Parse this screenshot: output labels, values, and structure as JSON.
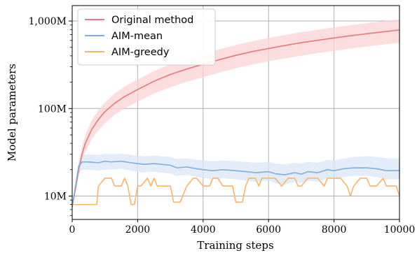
{
  "chart_data": {
    "type": "line",
    "title": "",
    "xlabel": "Training steps",
    "ylabel": "Model parameters",
    "xlim": [
      0,
      10000
    ],
    "ylim_millions": [
      5.4,
      1500
    ],
    "yscale": "log",
    "grid": true,
    "legend_position": "top-left",
    "x_ticks": [
      0,
      2000,
      4000,
      6000,
      8000,
      10000
    ],
    "x_tick_labels": [
      "0",
      "2000",
      "4000",
      "6000",
      "8000",
      "10000"
    ],
    "y_ticks_millions": [
      10,
      100,
      1000
    ],
    "y_tick_labels": [
      "10M",
      "100M",
      "1,000M"
    ],
    "series": [
      {
        "name": "Original method",
        "color": "#e8787a",
        "band_color": "#fbd3d4",
        "x": [
          0,
          100,
          200,
          300,
          400,
          600,
          800,
          1000,
          1300,
          1600,
          2000,
          2500,
          3000,
          3500,
          4000,
          4500,
          5000,
          5500,
          6000,
          6500,
          7000,
          7500,
          8000,
          8500,
          9000,
          9500,
          10000
        ],
        "y": [
          7.5,
          12,
          20,
          30,
          40,
          58,
          75,
          92,
          115,
          137,
          165,
          205,
          245,
          283,
          320,
          362,
          405,
          447,
          485,
          525,
          565,
          602,
          640,
          678,
          715,
          752,
          790
        ],
        "lower": [
          7.5,
          11,
          17,
          25,
          32,
          45,
          56,
          68,
          85,
          100,
          120,
          148,
          175,
          202,
          228,
          258,
          288,
          318,
          346,
          374,
          402,
          430,
          456,
          484,
          511,
          538,
          565
        ],
        "upper": [
          7.5,
          13,
          24,
          37,
          50,
          74,
          96,
          118,
          148,
          178,
          214,
          268,
          320,
          372,
          420,
          475,
          532,
          587,
          640,
          692,
          746,
          795,
          845,
          895,
          945,
          995,
          1045
        ]
      },
      {
        "name": "AIM-mean",
        "color": "#7eaedb",
        "band_color": "#d9e7f7",
        "x": [
          0,
          200,
          300,
          500,
          800,
          1000,
          1200,
          1500,
          1800,
          2000,
          2200,
          2500,
          3000,
          3200,
          3500,
          3800,
          4000,
          4300,
          4600,
          5000,
          5300,
          5600,
          6000,
          6200,
          6500,
          6800,
          7000,
          7200,
          7500,
          7800,
          8000,
          8300,
          8600,
          9000,
          9300,
          9600,
          10000
        ],
        "y": [
          7.5,
          22,
          24.5,
          24.5,
          24,
          25,
          24.5,
          25,
          24,
          23.5,
          23,
          23.5,
          22.5,
          21,
          21.5,
          20.5,
          20,
          19.5,
          20,
          19.5,
          19,
          18.5,
          19,
          18,
          17.5,
          18.5,
          17.8,
          19,
          18.5,
          20,
          19.5,
          20.5,
          21,
          21,
          20.5,
          19.5,
          19.5
        ],
        "lower": [
          7.5,
          18,
          20,
          20,
          19.5,
          20,
          20,
          20.5,
          19.5,
          19,
          18.5,
          19,
          18,
          17,
          17.5,
          16.5,
          16,
          15.5,
          16,
          15.5,
          15,
          14.5,
          15,
          14,
          13.5,
          14.5,
          14,
          15,
          14.5,
          16,
          15.5,
          16.5,
          17,
          17,
          16.5,
          15.5,
          15.5
        ],
        "upper": [
          7.5,
          26,
          29.5,
          30,
          29.5,
          30.5,
          30,
          30.5,
          29.5,
          29,
          28.5,
          29,
          28,
          26.5,
          27,
          26,
          25.5,
          25,
          25.5,
          25,
          24.5,
          24,
          24.5,
          23.5,
          23,
          24,
          23.5,
          24.5,
          24,
          26,
          25.5,
          27,
          28,
          28.5,
          28,
          27,
          27
        ]
      },
      {
        "name": "AIM-greedy",
        "color": "#fbb56a",
        "band_color": "#fde3c8",
        "x": [
          0,
          150,
          300,
          450,
          600,
          750,
          800,
          1000,
          1200,
          1300,
          1500,
          1600,
          1700,
          1800,
          1900,
          2000,
          2100,
          2300,
          2400,
          2500,
          2600,
          2800,
          3000,
          3100,
          3300,
          3500,
          3700,
          3800,
          4000,
          4200,
          4300,
          4450,
          4600,
          4700,
          4900,
          5000,
          5200,
          5300,
          5400,
          5600,
          5700,
          5800,
          6000,
          6200,
          6400,
          6600,
          6800,
          6900,
          7000,
          7200,
          7500,
          7700,
          7800,
          8000,
          8200,
          8400,
          8500,
          8600,
          8800,
          9000,
          9100,
          9300,
          9500,
          9600,
          9800,
          9900,
          10000
        ],
        "y": [
          8,
          8,
          8,
          8,
          8,
          8,
          13,
          16,
          16,
          13,
          13,
          16,
          13,
          8,
          8,
          13,
          13,
          16,
          13,
          16,
          13,
          13,
          13,
          8.5,
          8.5,
          13,
          16,
          16,
          13,
          13,
          16,
          16,
          13,
          13,
          13,
          8.5,
          8.5,
          13,
          16,
          16,
          13,
          16,
          16,
          16,
          13,
          16,
          16,
          13,
          13,
          16,
          16,
          13,
          16,
          16,
          16,
          13,
          10,
          13,
          16,
          16,
          13,
          13,
          16,
          13,
          13,
          13,
          10
        ]
      }
    ]
  }
}
